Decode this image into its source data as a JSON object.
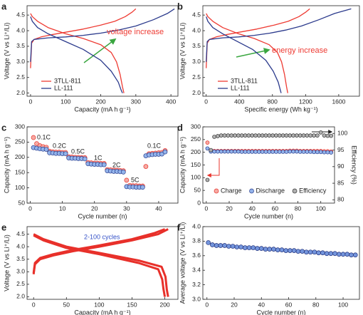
{
  "chart_data": [
    {
      "type": "line",
      "label": "a",
      "xlabel": "Capacity (mA h g⁻¹)",
      "ylabel": "Voltage (V vs Li⁺/Li)",
      "xlim": [
        -10,
        420
      ],
      "ylim": [
        1.9,
        4.8
      ],
      "xticks": [
        0,
        100,
        200,
        300,
        400
      ],
      "yticks": [
        {
          "value": 2,
          "label": "2.0"
        },
        2.5,
        {
          "value": 3,
          "label": "3.0"
        },
        3.5,
        {
          "value": 4,
          "label": "4.0"
        },
        4.5
      ],
      "legend": "lower left",
      "series": [
        {
          "name": "3TLL-811",
          "color": "#ee3b33",
          "x": [
            0,
            3,
            10,
            30,
            60,
            100,
            150,
            200,
            240,
            270,
            290,
            300
          ],
          "values": [
            2.8,
            3.6,
            3.72,
            3.8,
            3.87,
            3.95,
            4.05,
            4.18,
            4.3,
            4.45,
            4.6,
            4.7
          ]
        },
        {
          "color": "#ee3b33",
          "x": [
            0,
            5,
            20,
            50,
            100,
            150,
            200,
            230,
            245,
            255,
            262,
            266
          ],
          "values": [
            4.55,
            4.45,
            4.3,
            4.1,
            3.9,
            3.75,
            3.55,
            3.3,
            3.0,
            2.6,
            2.2,
            2.0
          ]
        },
        {
          "name": "LL-111",
          "color": "#2b3a8c",
          "x": [
            0,
            3,
            10,
            50,
            100,
            150,
            200,
            250,
            300,
            350,
            390,
            410
          ],
          "values": [
            3.0,
            3.65,
            3.72,
            3.77,
            3.8,
            3.85,
            3.92,
            4.02,
            4.15,
            4.35,
            4.55,
            4.7
          ]
        },
        {
          "color": "#2b3a8c",
          "x": [
            0,
            5,
            20,
            50,
            100,
            150,
            200,
            230,
            250,
            258,
            262
          ],
          "values": [
            4.45,
            4.3,
            4.1,
            3.9,
            3.65,
            3.4,
            3.05,
            2.7,
            2.35,
            2.1,
            2.0
          ]
        }
      ],
      "annotations": [
        {
          "text": "voltage increase",
          "color": "#ee3b33"
        }
      ]
    },
    {
      "type": "line",
      "label": "b",
      "xlabel": "Specific energy (Wh kg⁻¹)",
      "ylabel": "Voltage (V vs Li⁺/Li)",
      "xlim": [
        -40,
        1850
      ],
      "ylim": [
        1.9,
        4.8
      ],
      "xticks": [
        0,
        400,
        800,
        1200,
        1600
      ],
      "yticks": [
        {
          "value": 2,
          "label": "2.0"
        },
        2.5,
        {
          "value": 3,
          "label": "3.0"
        },
        3.5,
        {
          "value": 4,
          "label": "4.0"
        },
        4.5
      ],
      "legend": "lower left",
      "series": [
        {
          "name": "3TLL-811",
          "color": "#ee3b33",
          "x": [
            0,
            12,
            40,
            120,
            240,
            400,
            610,
            820,
            990,
            1120,
            1205,
            1250
          ],
          "values": [
            2.8,
            3.6,
            3.72,
            3.8,
            3.87,
            3.95,
            4.05,
            4.18,
            4.3,
            4.45,
            4.6,
            4.7
          ]
        },
        {
          "color": "#ee3b33",
          "x": [
            0,
            20,
            80,
            200,
            390,
            580,
            760,
            860,
            910,
            945,
            970,
            985
          ],
          "values": [
            4.55,
            4.45,
            4.3,
            4.1,
            3.9,
            3.75,
            3.55,
            3.3,
            3.0,
            2.6,
            2.2,
            2.0
          ]
        },
        {
          "name": "LL-111",
          "color": "#2b3a8c",
          "x": [
            0,
            12,
            40,
            200,
            390,
            580,
            770,
            960,
            1150,
            1360,
            1550,
            1750
          ],
          "values": [
            3.0,
            3.65,
            3.72,
            3.77,
            3.8,
            3.85,
            3.92,
            4.02,
            4.15,
            4.35,
            4.55,
            4.7
          ]
        },
        {
          "color": "#2b3a8c",
          "x": [
            0,
            20,
            80,
            200,
            380,
            560,
            720,
            810,
            870,
            895,
            905
          ],
          "values": [
            4.45,
            4.3,
            4.1,
            3.9,
            3.65,
            3.4,
            3.05,
            2.7,
            2.35,
            2.1,
            2.0
          ]
        }
      ],
      "annotations": [
        {
          "text": "energy increase",
          "color": "#ee3b33"
        }
      ]
    },
    {
      "type": "scatter",
      "label": "c",
      "xlabel": "Cycle number (n)",
      "ylabel": "Capacity (mA h g⁻¹)",
      "xlim": [
        -1,
        46
      ],
      "ylim": [
        50,
        300
      ],
      "xticks": [
        0,
        10,
        20,
        30,
        40
      ],
      "yticks": [
        50,
        100,
        150,
        200,
        250,
        300
      ],
      "x": [
        1,
        2,
        3,
        4,
        5,
        6,
        7,
        8,
        9,
        10,
        11,
        12,
        13,
        14,
        15,
        16,
        17,
        18,
        19,
        20,
        21,
        22,
        23,
        24,
        25,
        26,
        27,
        28,
        29,
        30,
        31,
        32,
        33,
        34,
        35,
        36,
        37,
        38,
        39,
        40,
        41,
        42
      ],
      "series": [
        {
          "color": "#e8352e",
          "fill": "#f6aaa3",
          "values": [
            265,
            245,
            238,
            235,
            233,
            220,
            218,
            217,
            217,
            216,
            216,
            202,
            201,
            200,
            200,
            199,
            199,
            183,
            182,
            181,
            181,
            180,
            180,
            160,
            159,
            158,
            158,
            157,
            156,
            125,
            108,
            107,
            107,
            106,
            106,
            170,
            212,
            213,
            214,
            215,
            216,
            222
          ]
        },
        {
          "color": "#2a3f8f",
          "fill": "#93b3ea",
          "values": [
            232,
            230,
            228,
            227,
            226,
            215,
            214,
            213,
            213,
            212,
            212,
            198,
            197,
            197,
            196,
            196,
            195,
            179,
            178,
            177,
            177,
            176,
            176,
            156,
            155,
            154,
            154,
            153,
            152,
            104,
            103,
            103,
            102,
            102,
            102,
            205,
            208,
            209,
            210,
            210,
            211,
            218
          ]
        }
      ],
      "annotations": [
        {
          "text": "0.1C",
          "color": "#222"
        },
        {
          "text": "0.2C",
          "color": "#222"
        },
        {
          "text": "0.5C",
          "color": "#222"
        },
        {
          "text": "1C",
          "color": "#222"
        },
        {
          "text": "2C",
          "color": "#222"
        },
        {
          "text": "5C",
          "color": "#222"
        },
        {
          "text": "0.1C",
          "color": "#222"
        }
      ]
    },
    {
      "type": "scatter",
      "label": "d",
      "xlabel": "Cycle number (n)",
      "ylabel": "Capacity (mA h g⁻¹)",
      "y2label": "Efficiency (%)",
      "xlim": [
        -3,
        112
      ],
      "ylim": [
        0,
        300
      ],
      "y2lim": [
        79,
        102
      ],
      "xticks": [
        0,
        20,
        40,
        60,
        80,
        100
      ],
      "yticks": [
        0,
        50,
        100,
        150,
        200,
        250,
        300
      ],
      "y2ticks": [
        80,
        85,
        90,
        95,
        100
      ],
      "legend": "lower center",
      "x": [
        1,
        4,
        7,
        10,
        13,
        16,
        19,
        22,
        25,
        28,
        31,
        34,
        37,
        40,
        43,
        46,
        49,
        52,
        55,
        58,
        61,
        64,
        67,
        70,
        73,
        76,
        79,
        82,
        85,
        88,
        91,
        94,
        97,
        100,
        103,
        106,
        109
      ],
      "series": [
        {
          "name": "Charge",
          "color": "#e8352e",
          "fill": "#f6aaa3",
          "values": [
            238,
            206,
            205,
            205,
            205,
            205,
            205,
            205,
            205,
            205,
            205,
            205,
            205,
            205,
            205,
            205,
            205,
            205,
            205,
            205,
            205,
            205,
            205,
            205,
            206,
            206,
            206,
            205,
            205,
            205,
            205,
            205,
            205,
            205,
            204,
            204,
            203
          ]
        },
        {
          "name": "Discharge",
          "color": "#2a3f8f",
          "fill": "#93b3ea",
          "values": [
            215,
            203,
            203,
            203,
            203,
            203,
            203,
            203,
            203,
            203,
            202,
            202,
            202,
            202,
            202,
            202,
            202,
            202,
            202,
            202,
            202,
            202,
            202,
            202,
            203,
            203,
            203,
            202,
            202,
            202,
            202,
            201,
            201,
            201,
            200,
            200,
            199
          ]
        },
        {
          "name": "Efficiency",
          "color": "#333333",
          "fill": "#b0b0b0",
          "axis": "y2",
          "values": [
            86,
            95,
            99,
            99.2,
            99.4,
            99.4,
            99.4,
            99.4,
            99.4,
            99.4,
            99.4,
            99.4,
            99.4,
            99.4,
            99.4,
            99.4,
            99.4,
            99.4,
            99.4,
            99.4,
            99.4,
            99.4,
            99.4,
            99.4,
            99.4,
            99.4,
            99.4,
            99.4,
            99.4,
            99.4,
            99.4,
            99.4,
            99.4,
            100.3,
            99.4,
            99.3,
            99.3
          ]
        }
      ]
    },
    {
      "type": "line",
      "label": "e",
      "xlabel": "Capacity (mA h g⁻¹)",
      "ylabel": "Voltage (V vs Li⁺/Li)",
      "xlim": [
        -10,
        220
      ],
      "ylim": [
        1.9,
        4.8
      ],
      "xticks": [
        0,
        50,
        100,
        150,
        200
      ],
      "yticks": [
        {
          "value": 2,
          "label": "2.0"
        },
        2.5,
        {
          "value": 3,
          "label": "3.0"
        },
        3.5,
        {
          "value": 4,
          "label": "4.0"
        },
        4.5
      ],
      "series": [
        {
          "color": "#e8302a",
          "x": [
            0,
            2,
            10,
            30,
            60,
            100,
            150,
            190,
            205
          ],
          "values": [
            2.9,
            3.3,
            3.5,
            3.65,
            3.82,
            4.0,
            4.25,
            4.5,
            4.7
          ]
        },
        {
          "color": "#e8302a",
          "x": [
            0,
            2,
            10,
            30,
            60,
            100,
            150,
            185,
            200
          ],
          "values": [
            2.95,
            3.35,
            3.55,
            3.7,
            3.87,
            4.05,
            4.3,
            4.55,
            4.7
          ]
        },
        {
          "color": "#e8302a",
          "x": [
            0,
            15,
            50,
            100,
            160,
            195,
            201,
            203,
            205
          ],
          "values": [
            4.5,
            4.3,
            4.0,
            3.75,
            3.45,
            3.2,
            2.8,
            2.3,
            2.0
          ]
        },
        {
          "color": "#e8302a",
          "x": [
            0,
            15,
            50,
            100,
            160,
            190,
            196,
            198,
            200
          ],
          "values": [
            4.45,
            4.25,
            3.95,
            3.7,
            3.35,
            3.1,
            2.7,
            2.3,
            2.0
          ]
        }
      ],
      "annotations": [
        {
          "text": "2-100 cycles",
          "color": "#3552c8"
        }
      ]
    },
    {
      "type": "scatter",
      "label": "f",
      "xlabel": "Cycle number (n)",
      "ylabel": "Average voltage (V vs Li⁺/Li)",
      "xlim": [
        -3,
        112
      ],
      "ylim": [
        3.0,
        4.0
      ],
      "xticks": [
        0,
        20,
        40,
        60,
        80,
        100
      ],
      "yticks": [
        {
          "value": 3,
          "label": "3.0"
        },
        3.2,
        3.4,
        3.6,
        3.8,
        {
          "value": 4,
          "label": "4.0"
        }
      ],
      "x": [
        1,
        4,
        7,
        10,
        13,
        16,
        19,
        22,
        25,
        28,
        31,
        34,
        37,
        40,
        43,
        46,
        49,
        52,
        55,
        58,
        61,
        64,
        67,
        70,
        73,
        76,
        79,
        82,
        85,
        88,
        91,
        94,
        97,
        100,
        103,
        106,
        109
      ],
      "series": [
        {
          "color": "#1f2f7a",
          "fill": "#7495dc",
          "values": [
            3.78,
            3.75,
            3.74,
            3.74,
            3.74,
            3.73,
            3.73,
            3.72,
            3.72,
            3.71,
            3.71,
            3.71,
            3.7,
            3.7,
            3.69,
            3.69,
            3.69,
            3.68,
            3.68,
            3.67,
            3.67,
            3.67,
            3.66,
            3.66,
            3.65,
            3.65,
            3.65,
            3.64,
            3.64,
            3.63,
            3.63,
            3.63,
            3.62,
            3.62,
            3.62,
            3.61,
            3.61
          ]
        }
      ]
    }
  ]
}
